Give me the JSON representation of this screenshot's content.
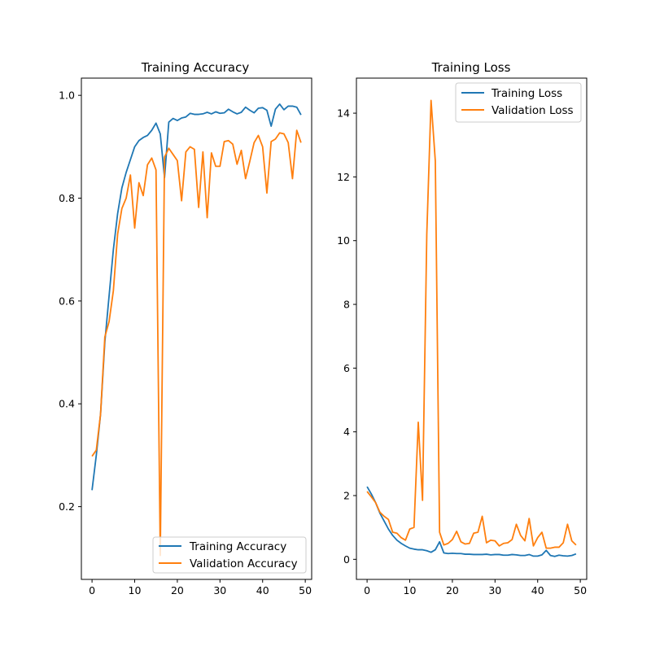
{
  "chart_data": [
    {
      "type": "line",
      "title": "Training Accuracy",
      "xlabel": "",
      "ylabel": "",
      "xlim": [
        -2.5,
        51.5
      ],
      "ylim": [
        0.0585,
        1.0335
      ],
      "xticks": [
        0,
        10,
        20,
        30,
        40,
        50
      ],
      "yticks": [
        0.2,
        0.4,
        0.6,
        0.8,
        1.0
      ],
      "ytick_labels": [
        "0.2",
        "0.4",
        "0.6",
        "0.8",
        "1.0"
      ],
      "grid": false,
      "legend": "lower-right",
      "x": [
        0,
        1,
        2,
        3,
        4,
        5,
        6,
        7,
        8,
        9,
        10,
        11,
        12,
        13,
        14,
        15,
        16,
        17,
        18,
        19,
        20,
        21,
        22,
        23,
        24,
        25,
        26,
        27,
        28,
        29,
        30,
        31,
        32,
        33,
        34,
        35,
        36,
        37,
        38,
        39,
        40,
        41,
        42,
        43,
        44,
        45,
        46,
        47,
        48,
        49
      ],
      "series": [
        {
          "name": "Training Accuracy",
          "color": "#1f77b4",
          "values": [
            0.232,
            0.3,
            0.38,
            0.52,
            0.61,
            0.7,
            0.77,
            0.82,
            0.85,
            0.875,
            0.9,
            0.912,
            0.918,
            0.922,
            0.932,
            0.946,
            0.925,
            0.84,
            0.948,
            0.955,
            0.951,
            0.956,
            0.958,
            0.965,
            0.963,
            0.963,
            0.964,
            0.967,
            0.964,
            0.968,
            0.965,
            0.966,
            0.973,
            0.968,
            0.964,
            0.967,
            0.977,
            0.971,
            0.966,
            0.975,
            0.976,
            0.971,
            0.94,
            0.973,
            0.983,
            0.972,
            0.979,
            0.979,
            0.977,
            0.962
          ]
        },
        {
          "name": "Validation Accuracy",
          "color": "#ff7f0e",
          "values": [
            0.298,
            0.31,
            0.38,
            0.53,
            0.56,
            0.62,
            0.73,
            0.78,
            0.8,
            0.845,
            0.742,
            0.83,
            0.805,
            0.865,
            0.878,
            0.855,
            0.105,
            0.88,
            0.897,
            0.885,
            0.873,
            0.795,
            0.89,
            0.9,
            0.895,
            0.782,
            0.89,
            0.762,
            0.888,
            0.862,
            0.862,
            0.91,
            0.912,
            0.905,
            0.866,
            0.893,
            0.838,
            0.872,
            0.908,
            0.922,
            0.9,
            0.81,
            0.91,
            0.915,
            0.927,
            0.925,
            0.908,
            0.838,
            0.932,
            0.908
          ]
        }
      ]
    },
    {
      "type": "line",
      "title": "Training Loss",
      "xlabel": "",
      "ylabel": "",
      "xlim": [
        -2.5,
        51.5
      ],
      "ylim": [
        -0.63,
        15.1
      ],
      "xticks": [
        0,
        10,
        20,
        30,
        40,
        50
      ],
      "yticks": [
        0,
        2,
        4,
        6,
        8,
        10,
        12,
        14
      ],
      "ytick_labels": [
        "0",
        "2",
        "4",
        "6",
        "8",
        "10",
        "12",
        "14"
      ],
      "grid": false,
      "legend": "top-right",
      "x": [
        0,
        1,
        2,
        3,
        4,
        5,
        6,
        7,
        8,
        9,
        10,
        11,
        12,
        13,
        14,
        15,
        16,
        17,
        18,
        19,
        20,
        21,
        22,
        23,
        24,
        25,
        26,
        27,
        28,
        29,
        30,
        31,
        32,
        33,
        34,
        35,
        36,
        37,
        38,
        39,
        40,
        41,
        42,
        43,
        44,
        45,
        46,
        47,
        48,
        49
      ],
      "series": [
        {
          "name": "Training Loss",
          "color": "#1f77b4",
          "values": [
            2.28,
            2.05,
            1.78,
            1.45,
            1.2,
            0.95,
            0.75,
            0.6,
            0.5,
            0.42,
            0.35,
            0.32,
            0.3,
            0.3,
            0.27,
            0.22,
            0.3,
            0.55,
            0.2,
            0.18,
            0.19,
            0.18,
            0.18,
            0.16,
            0.16,
            0.15,
            0.15,
            0.15,
            0.16,
            0.14,
            0.15,
            0.15,
            0.13,
            0.13,
            0.15,
            0.14,
            0.12,
            0.12,
            0.15,
            0.1,
            0.1,
            0.14,
            0.28,
            0.12,
            0.09,
            0.13,
            0.11,
            0.1,
            0.12,
            0.17
          ]
        },
        {
          "name": "Validation Loss",
          "color": "#ff7f0e",
          "values": [
            2.13,
            1.96,
            1.78,
            1.48,
            1.35,
            1.25,
            0.85,
            0.82,
            0.68,
            0.6,
            0.95,
            1.0,
            4.3,
            1.85,
            10.2,
            14.4,
            12.5,
            0.85,
            0.45,
            0.5,
            0.62,
            0.88,
            0.55,
            0.48,
            0.5,
            0.82,
            0.85,
            1.35,
            0.52,
            0.6,
            0.58,
            0.42,
            0.5,
            0.52,
            0.62,
            1.1,
            0.75,
            0.58,
            1.28,
            0.42,
            0.68,
            0.85,
            0.35,
            0.35,
            0.38,
            0.38,
            0.52,
            1.1,
            0.58,
            0.45
          ]
        }
      ]
    }
  ]
}
